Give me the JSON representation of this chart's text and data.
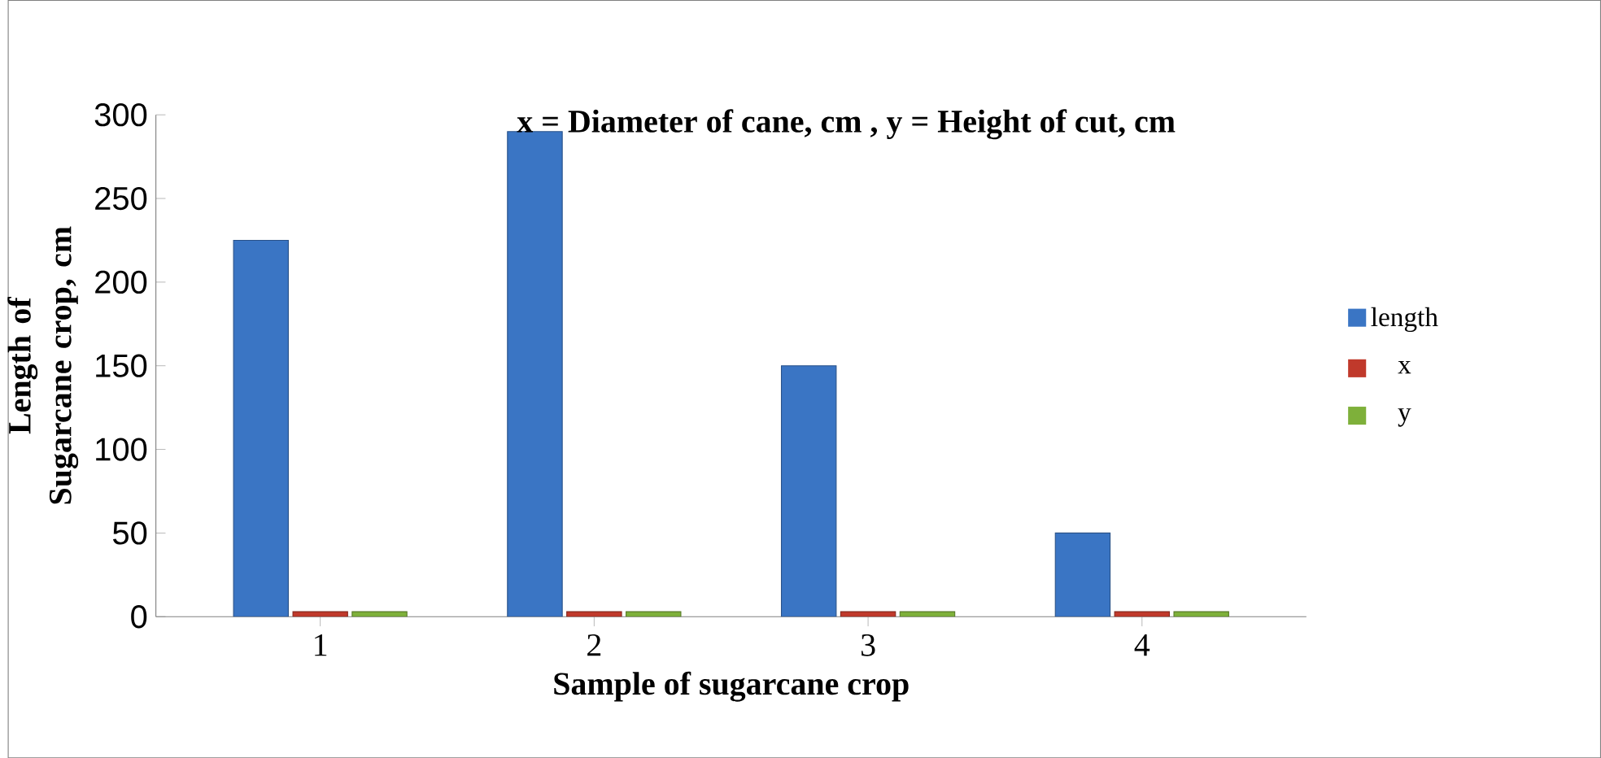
{
  "chart_data": {
    "type": "bar",
    "title": "x = Diameter of cane, cm , y = Height of cut, cm",
    "xlabel": "Sample of sugarcane crop",
    "ylabel": "Length of Sugarcane crop, cm",
    "categories": [
      "1",
      "2",
      "3",
      "4"
    ],
    "series": [
      {
        "name": "length",
        "color": "#3a75c4",
        "values": [
          225,
          290,
          150,
          50
        ]
      },
      {
        "name": "x",
        "color": "#c0392b",
        "values": [
          3,
          3,
          3,
          3
        ]
      },
      {
        "name": "y",
        "color": "#7eb03a",
        "values": [
          3,
          3,
          3,
          3
        ]
      }
    ],
    "ylim": [
      0,
      300
    ],
    "yticks": [
      0,
      50,
      100,
      150,
      200,
      250,
      300
    ],
    "legend": "right"
  }
}
